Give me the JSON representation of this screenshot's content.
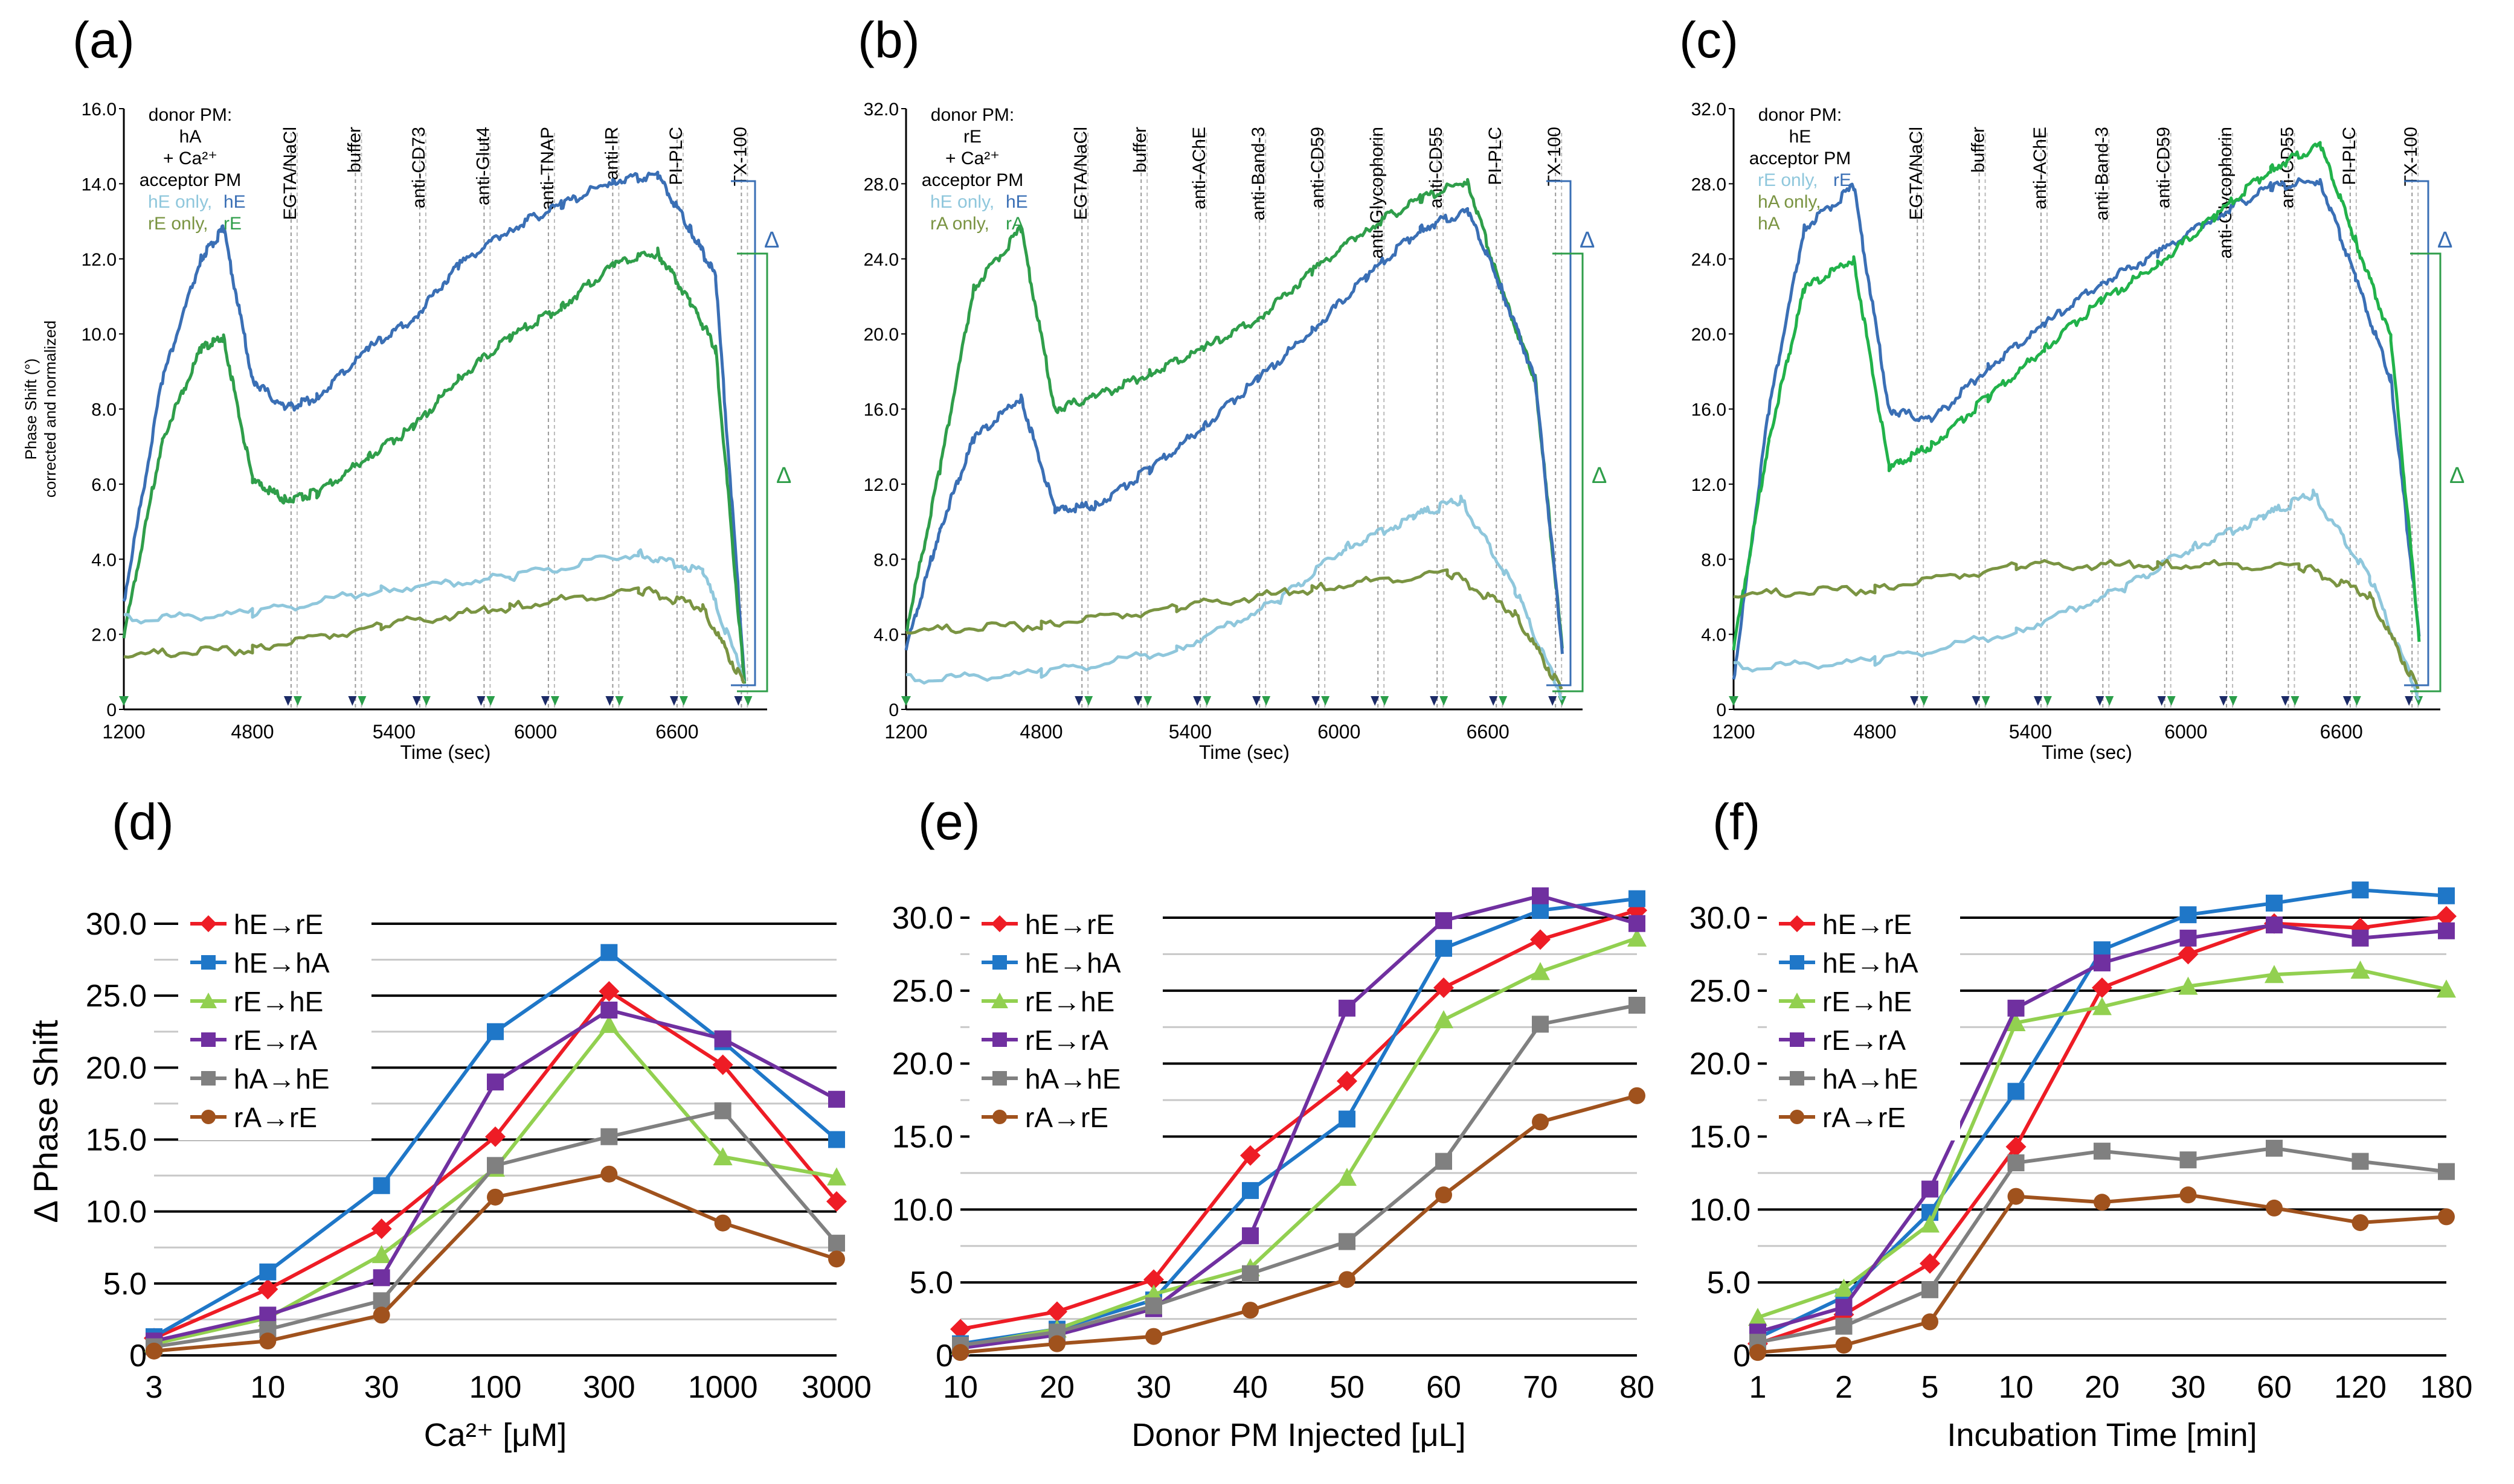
{
  "figure": {
    "panels": [
      {
        "letter": "(a)",
        "x_label": "Time (sec)",
        "y_label_line1": "Phase Shift (°)",
        "y_label_line2": "corrected and normalized",
        "legend": [
          "donor PM:",
          "hA",
          "+ Ca²⁺",
          "acceptor PM"
        ],
        "legend_color_lines": [
          [
            "hE only, ",
            "hE"
          ],
          [
            "rE only, ",
            "rE"
          ]
        ],
        "y_ticks": [
          "0",
          "2.0",
          "4.0",
          "6.0",
          "8.0",
          "10.0",
          "12.0",
          "14.0",
          "16.0"
        ],
        "x_ticks": [
          "1200",
          "4800",
          "5400",
          "6000",
          "6600"
        ],
        "events": [
          "EGTA/NaCl",
          "buffer",
          "anti-CD73",
          "anti-Glut4",
          "anti-TNAP",
          "anti-IR",
          "PI-PLC",
          "TX-100"
        ],
        "delta": "Δ"
      },
      {
        "letter": "(b)",
        "x_label": "Time (sec)",
        "legend": [
          "donor PM:",
          "rE",
          "+ Ca²⁺",
          "acceptor PM"
        ],
        "legend_color_lines": [
          [
            "hE only, ",
            "hE"
          ],
          [
            "rA only, ",
            "rA"
          ]
        ],
        "y_ticks": [
          "0",
          "4.0",
          "8.0",
          "12.0",
          "16.0",
          "20.0",
          "24.0",
          "28.0",
          "32.0"
        ],
        "x_ticks": [
          "1200",
          "4800",
          "5400",
          "6000",
          "6600"
        ],
        "events": [
          "EGTA/NaCl",
          "buffer",
          "anti-AChE",
          "anti-Band-3",
          "anti-CD59",
          "anti-Glycophorin",
          "anti-CD55",
          "PI-PLC",
          "TX-100"
        ],
        "delta": "Δ"
      },
      {
        "letter": "(c)",
        "x_label": "Time (sec)",
        "legend": [
          "donor PM:",
          "hE",
          "acceptor PM"
        ],
        "legend_color_lines": [
          [
            "rE only, ",
            "rE"
          ],
          [
            "hA only, ",
            ""
          ],
          [
            "hA",
            ""
          ]
        ],
        "y_ticks": [
          "0",
          "4.0",
          "8.0",
          "12.0",
          "16.0",
          "20.0",
          "24.0",
          "28.0",
          "32.0"
        ],
        "x_ticks": [
          "1200",
          "4800",
          "5400",
          "6000",
          "6600"
        ],
        "events": [
          "EGTA/NaCl",
          "buffer",
          "anti-AChE",
          "anti-Band-3",
          "anti-CD59",
          "anti-Glycophorin",
          "anti-CD55",
          "PI-PLC",
          "TX-100"
        ],
        "delta": "Δ"
      }
    ],
    "colors": {
      "blue": "#3a6fb5",
      "green": "#2f9e4a",
      "light_blue": "#8fc7dc",
      "olive": "#7a9442",
      "cyan_green": "#21b24a"
    }
  },
  "chart_data": [
    {
      "type": "line",
      "panel": "(d)",
      "title": "",
      "xlabel": "Ca²⁺ [μM]",
      "ylabel": "Δ Phase Shift",
      "ylim": [
        0,
        30
      ],
      "categories": [
        "3",
        "10",
        "30",
        "100",
        "300",
        "1000",
        "3000"
      ],
      "y_ticks": [
        "0",
        "5.0",
        "10.0",
        "15.0",
        "20.0",
        "25.0",
        "30.0"
      ],
      "series": [
        {
          "name": "hE→rE",
          "color": "#ee1c25",
          "marker": "diamond",
          "values": [
            1.2,
            4.6,
            8.8,
            15.2,
            25.3,
            20.2,
            10.7
          ]
        },
        {
          "name": "hE→hA",
          "color": "#1f77c8",
          "marker": "square",
          "values": [
            1.3,
            5.8,
            11.8,
            22.5,
            28.0,
            21.8,
            15.0
          ]
        },
        {
          "name": "rE→hE",
          "color": "#92d050",
          "marker": "triangle",
          "values": [
            0.8,
            2.6,
            7.0,
            13.0,
            23.0,
            13.8,
            12.4
          ]
        },
        {
          "name": "rE→rA",
          "color": "#7030a0",
          "marker": "square",
          "values": [
            1.0,
            2.8,
            5.4,
            19.0,
            24.0,
            22.0,
            17.8
          ]
        },
        {
          "name": "hA→hE",
          "color": "#808080",
          "marker": "square",
          "values": [
            0.6,
            1.8,
            3.8,
            13.2,
            15.2,
            17.0,
            7.8
          ]
        },
        {
          "name": "rA→rE",
          "color": "#a0521d",
          "marker": "circle",
          "values": [
            0.3,
            1.0,
            2.8,
            11.0,
            12.6,
            9.2,
            6.7
          ]
        }
      ]
    },
    {
      "type": "line",
      "panel": "(e)",
      "title": "",
      "xlabel": "Donor PM Injected [μL]",
      "ylabel": "",
      "ylim": [
        0,
        30
      ],
      "categories": [
        "10",
        "20",
        "30",
        "40",
        "50",
        "60",
        "70",
        "80"
      ],
      "y_ticks": [
        "0",
        "5.0",
        "10.0",
        "15.0",
        "20.0",
        "25.0",
        "30.0"
      ],
      "series": [
        {
          "name": "hE→rE",
          "color": "#ee1c25",
          "marker": "diamond",
          "values": [
            1.8,
            3.0,
            5.2,
            13.7,
            18.8,
            25.2,
            28.5,
            30.5
          ]
        },
        {
          "name": "hE→hA",
          "color": "#1f77c8",
          "marker": "square",
          "values": [
            0.8,
            1.8,
            3.8,
            11.3,
            16.2,
            27.9,
            30.5,
            31.3
          ]
        },
        {
          "name": "rE→hE",
          "color": "#92d050",
          "marker": "triangle",
          "values": [
            0.6,
            1.8,
            4.2,
            6.0,
            12.2,
            23.0,
            26.3,
            28.6
          ]
        },
        {
          "name": "rE→rA",
          "color": "#7030a0",
          "marker": "square",
          "values": [
            0.5,
            1.4,
            3.2,
            8.2,
            23.8,
            29.8,
            31.5,
            29.6
          ]
        },
        {
          "name": "hA→hE",
          "color": "#808080",
          "marker": "square",
          "values": [
            0.7,
            1.6,
            3.4,
            5.6,
            7.8,
            13.3,
            22.7,
            24.0
          ]
        },
        {
          "name": "rA→rE",
          "color": "#a0521d",
          "marker": "circle",
          "values": [
            0.2,
            0.8,
            1.3,
            3.1,
            5.2,
            11.0,
            16.0,
            17.8
          ]
        }
      ]
    },
    {
      "type": "line",
      "panel": "(f)",
      "title": "",
      "xlabel": "Incubation Time [min]",
      "ylabel": "",
      "ylim": [
        0,
        30
      ],
      "categories": [
        "1",
        "2",
        "5",
        "10",
        "20",
        "30",
        "60",
        "120",
        "180"
      ],
      "y_ticks": [
        "0",
        "5.0",
        "10.0",
        "15.0",
        "20.0",
        "25.0",
        "30.0"
      ],
      "series": [
        {
          "name": "hE→rE",
          "color": "#ee1c25",
          "marker": "diamond",
          "values": [
            0.8,
            2.8,
            6.3,
            14.3,
            25.2,
            27.5,
            29.6,
            29.3,
            30.1
          ]
        },
        {
          "name": "hE→hA",
          "color": "#1f77c8",
          "marker": "square",
          "values": [
            1.2,
            4.0,
            9.8,
            18.1,
            27.8,
            30.2,
            31.0,
            31.9,
            31.5
          ]
        },
        {
          "name": "rE→hE",
          "color": "#92d050",
          "marker": "triangle",
          "values": [
            2.6,
            4.6,
            9.0,
            22.8,
            23.9,
            25.3,
            26.1,
            26.4,
            25.1
          ]
        },
        {
          "name": "rE→rA",
          "color": "#7030a0",
          "marker": "square",
          "values": [
            1.6,
            3.3,
            11.4,
            23.8,
            26.9,
            28.6,
            29.5,
            28.6,
            29.1
          ]
        },
        {
          "name": "hA→hE",
          "color": "#808080",
          "marker": "square",
          "values": [
            0.9,
            2.0,
            4.5,
            13.2,
            14.0,
            13.4,
            14.2,
            13.3,
            12.6
          ]
        },
        {
          "name": "rA→rE",
          "color": "#a0521d",
          "marker": "circle",
          "values": [
            0.2,
            0.7,
            2.3,
            10.9,
            10.5,
            11.0,
            10.1,
            9.1,
            9.5
          ]
        }
      ]
    }
  ]
}
